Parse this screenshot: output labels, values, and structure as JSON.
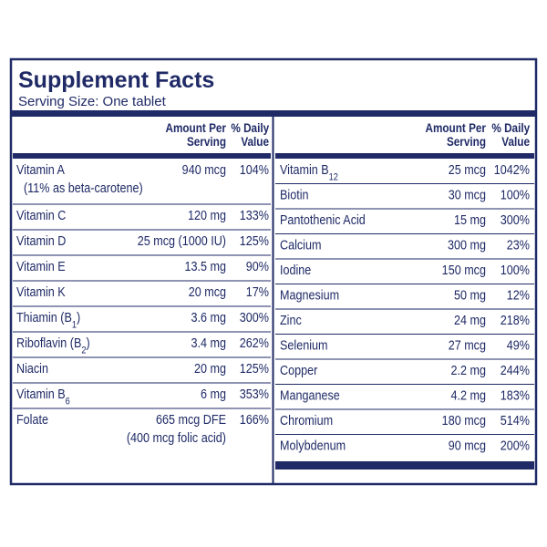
{
  "header": {
    "title": "Supplement Facts",
    "serving_size": "Serving Size: One tablet"
  },
  "columns": [
    {
      "headers": {
        "amount": [
          "Amount Per",
          "Serving"
        ],
        "daily_value": [
          "% Daily",
          "Value"
        ]
      },
      "rows": [
        {
          "name": "Vitamin A",
          "amount": "940 mcg",
          "daily_value": "104%",
          "note": "(11% as beta-carotene)"
        },
        {
          "name": "Vitamin C",
          "amount": "120 mg",
          "daily_value": "133%"
        },
        {
          "name": "Vitamin D",
          "amount": "25 mcg (1000 IU)",
          "daily_value": "125%"
        },
        {
          "name": "Vitamin E",
          "amount": "13.5 mg",
          "daily_value": "90%"
        },
        {
          "name": "Vitamin K",
          "amount": "20 mcg",
          "daily_value": "17%"
        },
        {
          "name": "Thiamin (B",
          "sub": "1",
          "name_end": ")",
          "amount": "3.6 mg",
          "daily_value": "300%"
        },
        {
          "name": "Riboflavin (B",
          "sub": "2",
          "name_end": ")",
          "amount": "3.4 mg",
          "daily_value": "262%"
        },
        {
          "name": "Niacin",
          "amount": "20 mg",
          "daily_value": "125%"
        },
        {
          "name": "Vitamin B",
          "sub": "6",
          "amount": "6 mg",
          "daily_value": "353%"
        },
        {
          "name": "Folate",
          "amount": "665 mcg DFE",
          "daily_value": "166%",
          "amount_note": "(400 mcg folic acid)"
        }
      ]
    },
    {
      "headers": {
        "amount": [
          "Amount Per",
          "Serving"
        ],
        "daily_value": [
          "% Daily",
          "Value"
        ]
      },
      "rows": [
        {
          "name": "Vitamin B",
          "sub": "12",
          "amount": "25 mcg",
          "daily_value": "1042%"
        },
        {
          "name": "Biotin",
          "amount": "30 mcg",
          "daily_value": "100%"
        },
        {
          "name": "Pantothenic Acid",
          "amount": "15 mg",
          "daily_value": "300%"
        },
        {
          "name": "Calcium",
          "amount": "300 mg",
          "daily_value": "23%"
        },
        {
          "name": "Iodine",
          "amount": "150 mcg",
          "daily_value": "100%"
        },
        {
          "name": "Magnesium",
          "amount": "50 mg",
          "daily_value": "12%"
        },
        {
          "name": "Zinc",
          "amount": "24 mg",
          "daily_value": "218%"
        },
        {
          "name": "Selenium",
          "amount": "27 mcg",
          "daily_value": "49%"
        },
        {
          "name": "Copper",
          "amount": "2.2 mg",
          "daily_value": "244%"
        },
        {
          "name": "Manganese",
          "amount": "4.2 mg",
          "daily_value": "183%"
        },
        {
          "name": "Chromium",
          "amount": "180 mcg",
          "daily_value": "514%"
        },
        {
          "name": "Molybdenum",
          "amount": "90 mcg",
          "daily_value": "200%"
        }
      ]
    }
  ]
}
